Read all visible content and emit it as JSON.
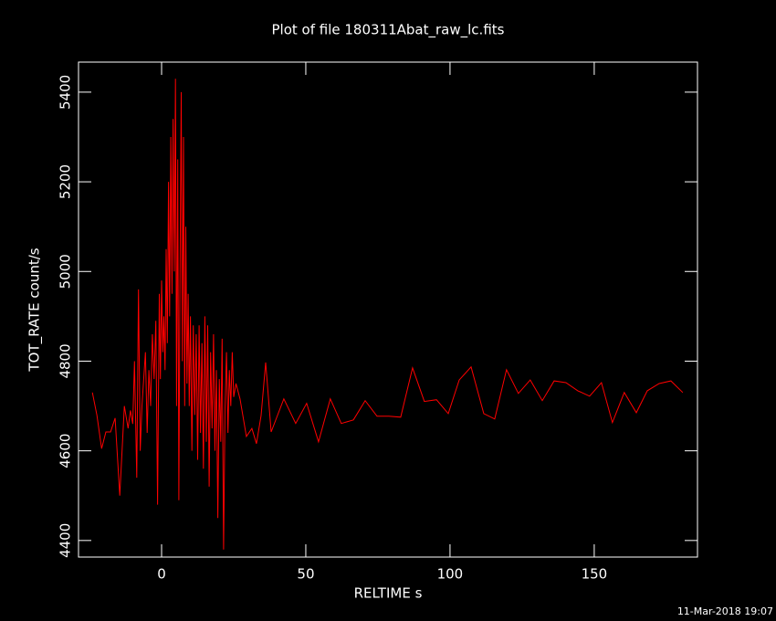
{
  "chart_data": {
    "type": "line",
    "title": "Plot of file 180311Abat_raw_lc.fits",
    "x_label": "RELTIME  s",
    "y_label": "TOT_RATE  count/s",
    "timestamp": "11-Mar-2018 19:07",
    "x": [
      -24,
      -22.4,
      -20.8,
      -19.3,
      -17.7,
      -16.1,
      -14.5,
      -12.9,
      -11.6,
      -10.8,
      -10,
      -9.4,
      -8.6,
      -8,
      -7.4,
      -6.8,
      -6.2,
      -5.6,
      -5,
      -4.4,
      -3.8,
      -3.2,
      -2.6,
      -2,
      -1.4,
      -0.8,
      -0.4,
      0,
      0.4,
      0.8,
      1.2,
      1.6,
      2,
      2.4,
      2.8,
      3.2,
      3.6,
      4,
      4.4,
      4.8,
      5.2,
      5.6,
      6,
      6.4,
      6.8,
      7.2,
      7.6,
      8,
      8.4,
      8.8,
      9.2,
      9.6,
      10,
      10.5,
      11,
      11.5,
      12,
      12.5,
      13,
      13.5,
      14,
      14.5,
      15,
      15.5,
      16,
      16.5,
      17,
      17.5,
      18,
      18.5,
      19,
      19.5,
      20,
      20.5,
      21,
      21.5,
      22,
      22.5,
      23,
      23.5,
      24,
      24.5,
      25,
      25.8,
      27.2,
      29.4,
      31.3,
      32.9,
      34.5,
      36.1,
      38,
      42.4,
      46.5,
      50.3,
      54.4,
      58.5,
      62.3,
      66.5,
      70.6,
      74.7,
      78.8,
      82.9,
      87,
      91.1,
      95.3,
      99.4,
      103.2,
      107.3,
      111.7,
      115.5,
      119.6,
      123.7,
      127.8,
      132,
      136.1,
      140.2,
      144.3,
      148.4,
      152.5,
      156.3,
      160.4,
      164.6,
      168.4,
      172.5,
      176.6,
      180.7
    ],
    "series": [
      {
        "color": "#ff0000",
        "values": [
          4730,
          4679,
          4605,
          4642,
          4642,
          4673,
          4500,
          4700,
          4650,
          4690,
          4660,
          4800,
          4540,
          4960,
          4600,
          4700,
          4760,
          4820,
          4640,
          4780,
          4700,
          4860,
          4760,
          4890,
          4480,
          4950,
          4760,
          4980,
          4820,
          4900,
          4780,
          5050,
          4840,
          5200,
          4900,
          5300,
          4950,
          5340,
          5000,
          5430,
          4700,
          5250,
          4490,
          5000,
          5400,
          4800,
          5300,
          4700,
          5100,
          4750,
          4950,
          4700,
          4900,
          4600,
          4880,
          4680,
          4860,
          4580,
          4880,
          4640,
          4840,
          4560,
          4900,
          4620,
          4880,
          4520,
          4820,
          4650,
          4860,
          4600,
          4780,
          4450,
          4760,
          4620,
          4850,
          4380,
          4700,
          4820,
          4640,
          4780,
          4700,
          4820,
          4720,
          4750,
          4716,
          4632,
          4650,
          4616,
          4679,
          4797,
          4642,
          4716,
          4661,
          4706,
          4620,
          4716,
          4661,
          4669,
          4712,
          4677,
          4677,
          4675,
          4785,
          4710,
          4714,
          4683,
          4758,
          4787,
          4683,
          4671,
          4781,
          4728,
          4758,
          4712,
          4756,
          4752,
          4734,
          4722,
          4752,
          4663,
          4730,
          4685,
          4734,
          4750,
          4756,
          4730
        ]
      }
    ],
    "xlim": [
      -28.8,
      185.8
    ],
    "ylim": [
      4363,
      5467
    ],
    "xticks": [
      0,
      50,
      100,
      150
    ],
    "yticks": [
      4400,
      4600,
      4800,
      5000,
      5200,
      5400
    ]
  }
}
